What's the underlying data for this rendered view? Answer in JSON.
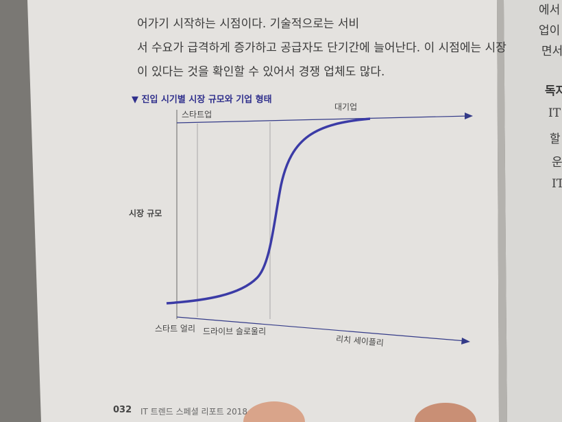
{
  "body": {
    "lines": [
      "어가기 시작하는 시점이다. 기술적으로는 서비",
      "서 수요가 급격하게 증가하고 공급자도 단기간에 늘어난다. 이 시점에는 시장",
      "이 있다는 것을 확인할 수 있어서 경쟁 업체도 많다."
    ]
  },
  "right_page": {
    "fragments": [
      "에서",
      "업이",
      "면서",
      "독자",
      "IT",
      "할",
      "운",
      "IT"
    ]
  },
  "figure": {
    "title": "▼ 진입 시기별 시장 규모와 기업 형태",
    "top_left_label": "스타트업",
    "top_right_label": "대기업",
    "y_label": "시장 규모",
    "stages": [
      "스타트 얼리",
      "드라이브 슬로울리",
      "리치 세이플리"
    ]
  },
  "footer": {
    "page_number": "032",
    "book_title": "IT 트렌드 스페셜 리포트 2018"
  }
}
